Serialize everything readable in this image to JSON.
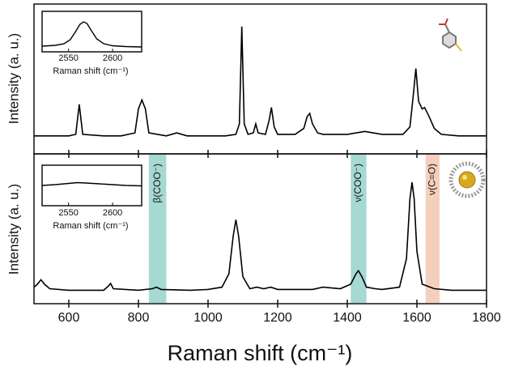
{
  "chart_data": [
    {
      "type": "line",
      "ylabel": "Intensity (a. u.)",
      "xlim": [
        500,
        1800
      ],
      "xticks": [
        600,
        800,
        1000,
        1200,
        1400,
        1600,
        1800
      ],
      "ylim": [
        0,
        100
      ],
      "series": [
        {
          "color": "#000000",
          "x": [
            500,
            600,
            620,
            630,
            640,
            700,
            750,
            790,
            800,
            810,
            820,
            830,
            880,
            910,
            940,
            1000,
            1050,
            1080,
            1090,
            1097,
            1104,
            1115,
            1130,
            1137,
            1144,
            1165,
            1175,
            1182,
            1190,
            1200,
            1250,
            1275,
            1285,
            1292,
            1300,
            1315,
            1330,
            1400,
            1450,
            1500,
            1560,
            1580,
            1590,
            1597,
            1605,
            1615,
            1622,
            1635,
            1650,
            1670,
            1720,
            1800
          ],
          "values": [
            12,
            12,
            13,
            33,
            13,
            12,
            12,
            14,
            30,
            36,
            30,
            14,
            12,
            14,
            12,
            12,
            12,
            13,
            20,
            85,
            20,
            13,
            14,
            20,
            14,
            13,
            22,
            31,
            18,
            13,
            13,
            17,
            25,
            27,
            20,
            14,
            13,
            13,
            15,
            13,
            13,
            18,
            40,
            57,
            35,
            30,
            31,
            25,
            17,
            13,
            12,
            12
          ]
        }
      ]
    },
    {
      "type": "line",
      "ylabel": "Intensity (a. u.)",
      "xlabel": "Raman shift (cm⁻¹)",
      "xlim": [
        500,
        1800
      ],
      "xticks": [
        600,
        800,
        1000,
        1200,
        1400,
        1600,
        1800
      ],
      "ylim": [
        0,
        100
      ],
      "annotations": [
        {
          "text": "β(COO⁻)",
          "x": [
            830,
            880
          ],
          "color": "#a6d8d4"
        },
        {
          "text": "ν(COO⁻)",
          "x": [
            1410,
            1455
          ],
          "color": "#a6d8d4"
        },
        {
          "text": "ν(C=O)",
          "x": [
            1625,
            1665
          ],
          "color": "#f4d0bc"
        }
      ],
      "series": [
        {
          "color": "#000000",
          "x": [
            500,
            510,
            520,
            530,
            545,
            600,
            700,
            715,
            720,
            728,
            800,
            840,
            852,
            865,
            950,
            1000,
            1040,
            1060,
            1072,
            1080,
            1088,
            1100,
            1120,
            1140,
            1160,
            1180,
            1200,
            1300,
            1330,
            1380,
            1410,
            1425,
            1432,
            1442,
            1455,
            1480,
            1500,
            1550,
            1570,
            1580,
            1586,
            1592,
            1600,
            1615,
            1650,
            1700,
            1800
          ],
          "values": [
            11,
            13,
            16,
            13,
            10,
            9,
            9,
            12,
            13.5,
            10,
            9,
            10,
            11,
            9.5,
            9,
            9.5,
            11,
            20,
            45,
            56,
            45,
            18,
            10,
            11,
            10,
            11,
            9.5,
            9.5,
            11,
            10,
            13,
            20,
            22,
            18,
            11,
            10,
            9.5,
            11,
            30,
            70,
            81,
            70,
            35,
            13,
            10,
            9,
            9
          ]
        }
      ]
    },
    {
      "type": "line",
      "xlabel": "Raman shift (cm⁻¹)",
      "xlim": [
        2520,
        2633
      ],
      "xticks": [
        2550,
        2600
      ],
      "ylim": [
        0,
        100
      ],
      "series": [
        {
          "color": "#000000",
          "x": [
            2520,
            2535,
            2545,
            2552,
            2558,
            2563,
            2567,
            2571,
            2576,
            2582,
            2590,
            2600,
            2615,
            2633
          ],
          "values": [
            14,
            16,
            20,
            30,
            50,
            68,
            74,
            70,
            52,
            32,
            20,
            15,
            13,
            12
          ]
        }
      ]
    },
    {
      "type": "line",
      "xlabel": "Raman shift (cm⁻¹)",
      "xlim": [
        2520,
        2633
      ],
      "xticks": [
        2550,
        2600
      ],
      "ylim": [
        0,
        100
      ],
      "series": [
        {
          "color": "#000000",
          "x": [
            2520,
            2535,
            2550,
            2560,
            2570,
            2585,
            2600,
            2615,
            2633
          ],
          "values": [
            50,
            52,
            55,
            57,
            56,
            54,
            52,
            50,
            49
          ]
        }
      ]
    }
  ]
}
